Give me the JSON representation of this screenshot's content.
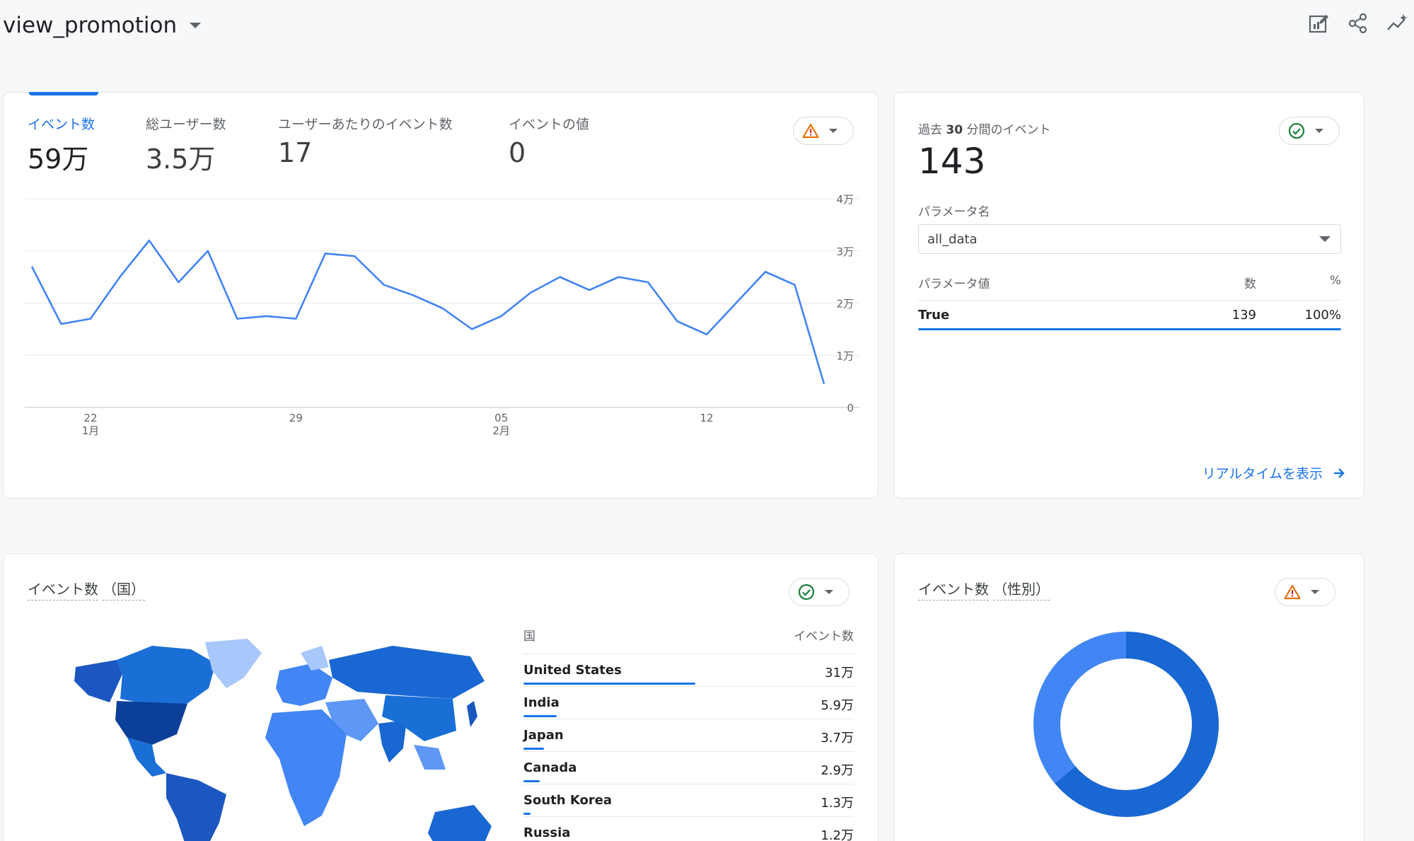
{
  "header": {
    "title": "view_promotion",
    "icons": [
      "customize-report-icon",
      "share-icon",
      "insights-icon"
    ]
  },
  "summary_card": {
    "metrics": [
      {
        "label": "イベント数",
        "value": "59万"
      },
      {
        "label": "総ユーザー数",
        "value": "3.5万"
      },
      {
        "label": "ユーザーあたりのイベント数",
        "value": "17"
      },
      {
        "label": "イベントの値",
        "value": "0"
      }
    ],
    "status": "warning",
    "chart_data": {
      "type": "line",
      "x": [
        21,
        22,
        23,
        24,
        25,
        26,
        27,
        28,
        29,
        30,
        31,
        32,
        33,
        34,
        35,
        36,
        37,
        38,
        39,
        40,
        41,
        42,
        43,
        44,
        45,
        46,
        47,
        48
      ],
      "values": [
        27000,
        16000,
        17000,
        25000,
        32000,
        24000,
        30000,
        17000,
        17500,
        17000,
        29500,
        29000,
        23500,
        21500,
        19000,
        15000,
        17500,
        22000,
        25000,
        22500,
        25000,
        24000,
        16500,
        14000,
        20000,
        26000,
        23500,
        4500
      ],
      "x_tick_labels": [
        {
          "x": 23,
          "day": "22",
          "month": "1月"
        },
        {
          "x": 30,
          "day": "29",
          "month": ""
        },
        {
          "x": 37,
          "day": "05",
          "month": "2月"
        },
        {
          "x": 44,
          "day": "12",
          "month": ""
        }
      ],
      "y_ticks": [
        {
          "value": 0,
          "label": "0"
        },
        {
          "value": 10000,
          "label": "1万"
        },
        {
          "value": 20000,
          "label": "2万"
        },
        {
          "value": 30000,
          "label": "3万"
        },
        {
          "value": 40000,
          "label": "4万"
        }
      ],
      "ylim": [
        0,
        40000
      ],
      "grid": true,
      "color": "#4285f4"
    }
  },
  "realtime_card": {
    "label_prefix": "過去",
    "label_bold": "30",
    "label_suffix": "分間のイベント",
    "value": "143",
    "status": "ok",
    "param_name_label": "パラメータ名",
    "param_select_value": "all_data",
    "table_headers": [
      "パラメータ値",
      "数",
      "%"
    ],
    "rows": [
      {
        "name": "True",
        "count": "139",
        "percent": "100%",
        "fraction": 1.0
      }
    ],
    "link_label": "リアルタイムを表示"
  },
  "country_card": {
    "title_main": "イベント数",
    "title_sub": "（国）",
    "status": "ok",
    "table_headers": [
      "国",
      "イベント数"
    ],
    "rows": [
      {
        "name": "United States",
        "value": "31万",
        "fraction": 0.52
      },
      {
        "name": "India",
        "value": "5.9万",
        "fraction": 0.1
      },
      {
        "name": "Japan",
        "value": "3.7万",
        "fraction": 0.063
      },
      {
        "name": "Canada",
        "value": "2.9万",
        "fraction": 0.049
      },
      {
        "name": "South Korea",
        "value": "1.3万",
        "fraction": 0.022
      },
      {
        "name": "Russia",
        "value": "1.2万",
        "fraction": 0.02
      }
    ]
  },
  "gender_card": {
    "title_main": "イベント数",
    "title_sub": "（性別）",
    "status": "warning",
    "chart_data": {
      "type": "pie",
      "slices": [
        {
          "value": 0.64,
          "color": "#1967d2"
        },
        {
          "value": 0.36,
          "color": "#4285f4"
        }
      ]
    }
  },
  "colors": {
    "accent": "#1a73e8",
    "warning": "#e8710a",
    "ok": "#188038"
  }
}
